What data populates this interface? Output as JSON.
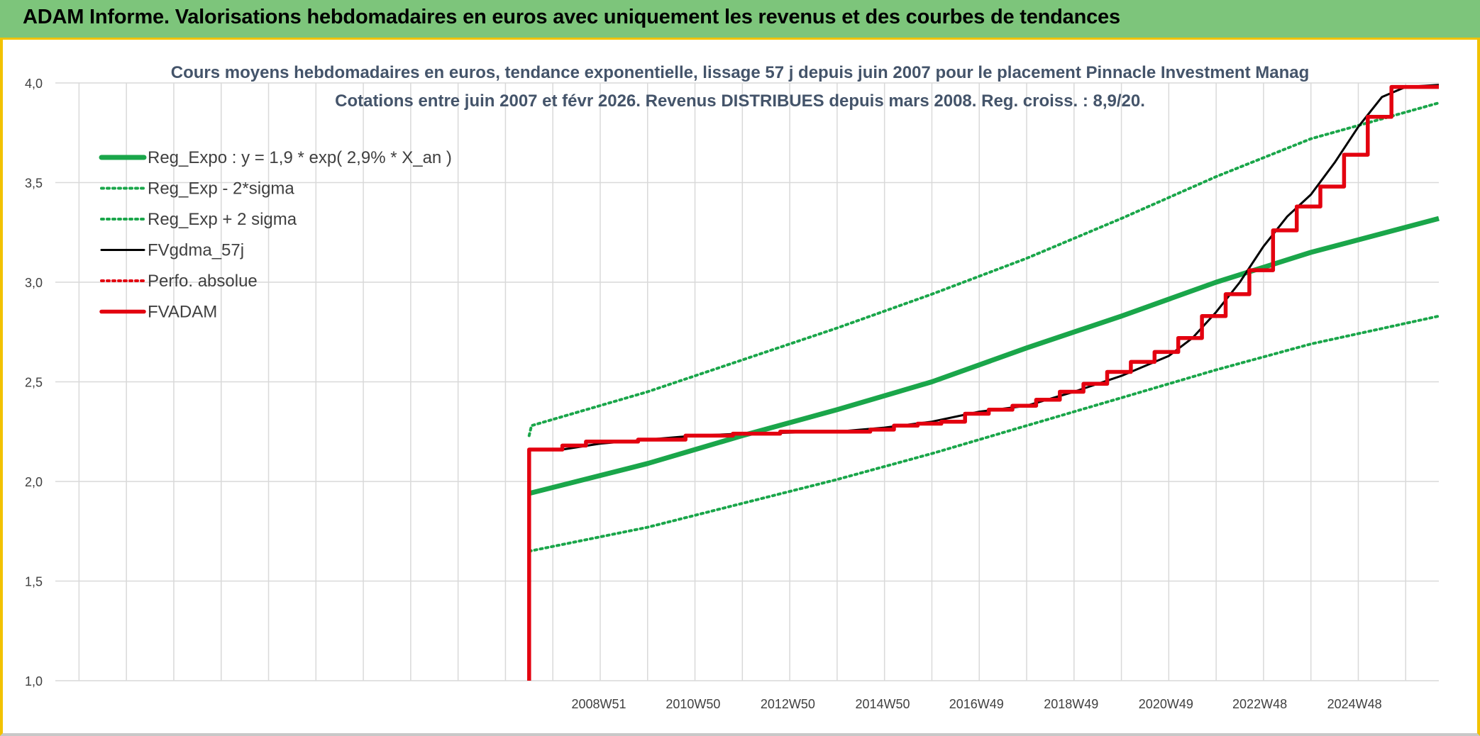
{
  "header": {
    "title": "ADAM Informe. Valorisations hebdomadaires en euros avec uniquement les revenus et des courbes de tendances"
  },
  "chart_data": {
    "type": "line",
    "title": "Cours moyens hebdomadaires en euros, tendance exponentielle, lissage 57 j depuis juin 2007 pour le placement Pinnacle Investment Manag",
    "subtitle": "Cotations entre juin 2007 et févr 2026. Revenus DISTRIBUES depuis mars 2008. Reg. croiss. : 8,9/20.",
    "xlabel": "",
    "ylabel": "",
    "x_range": [
      1997.5,
      2026.7
    ],
    "ylim": [
      1.0,
      4.0
    ],
    "y_ticks": [
      "1,0",
      "1,5",
      "2,0",
      "2,5",
      "3,0",
      "3,5",
      "4,0"
    ],
    "x_ticks": [
      {
        "label": "2008W51",
        "x": 2008.97
      },
      {
        "label": "2010W50",
        "x": 2010.96
      },
      {
        "label": "2012W50",
        "x": 2012.96
      },
      {
        "label": "2014W50",
        "x": 2014.96
      },
      {
        "label": "2016W49",
        "x": 2016.94
      },
      {
        "label": "2018W49",
        "x": 2018.94
      },
      {
        "label": "2020W49",
        "x": 2020.94
      },
      {
        "label": "2022W48",
        "x": 2022.92
      },
      {
        "label": "2024W48",
        "x": 2024.92
      }
    ],
    "grid": true,
    "legend_position": "top-left",
    "series": [
      {
        "name": "Reg_Expo : y = 1,9 * exp( 2,9% *  X_an )",
        "color": "#1aa64a",
        "style": "solid-thick",
        "points": [
          [
            2007.5,
            1.94
          ],
          [
            2010,
            2.09
          ],
          [
            2012,
            2.23
          ],
          [
            2014,
            2.36
          ],
          [
            2016,
            2.5
          ],
          [
            2018,
            2.67
          ],
          [
            2020,
            2.83
          ],
          [
            2022,
            3.0
          ],
          [
            2024,
            3.15
          ],
          [
            2026.7,
            3.32
          ]
        ]
      },
      {
        "name": "Reg_Exp - 2*sigma",
        "color": "#1aa64a",
        "style": "dotted",
        "points": [
          [
            2007.5,
            1.65
          ],
          [
            2010,
            1.77
          ],
          [
            2012,
            1.89
          ],
          [
            2014,
            2.01
          ],
          [
            2016,
            2.14
          ],
          [
            2018,
            2.28
          ],
          [
            2020,
            2.42
          ],
          [
            2022,
            2.56
          ],
          [
            2024,
            2.69
          ],
          [
            2026.7,
            2.83
          ]
        ]
      },
      {
        "name": "Reg_Exp + 2 sigma",
        "color": "#1aa64a",
        "style": "dotted",
        "points": [
          [
            2007.5,
            2.23
          ],
          [
            2007.55,
            2.28
          ],
          [
            2010,
            2.45
          ],
          [
            2012,
            2.61
          ],
          [
            2014,
            2.77
          ],
          [
            2016,
            2.94
          ],
          [
            2018,
            3.12
          ],
          [
            2020,
            3.32
          ],
          [
            2022,
            3.53
          ],
          [
            2024,
            3.72
          ],
          [
            2026.7,
            3.9
          ]
        ]
      },
      {
        "name": "FVgdma_57j",
        "color": "#000000",
        "style": "solid",
        "points": [
          [
            2007.6,
            2.16
          ],
          [
            2008.2,
            2.16
          ],
          [
            2009,
            2.19
          ],
          [
            2010,
            2.21
          ],
          [
            2011,
            2.23
          ],
          [
            2012,
            2.24
          ],
          [
            2014,
            2.25
          ],
          [
            2015,
            2.27
          ],
          [
            2016,
            2.3
          ],
          [
            2017,
            2.35
          ],
          [
            2018,
            2.38
          ],
          [
            2019,
            2.45
          ],
          [
            2020,
            2.53
          ],
          [
            2021,
            2.63
          ],
          [
            2021.5,
            2.72
          ],
          [
            2022,
            2.85
          ],
          [
            2022.5,
            3.0
          ],
          [
            2023,
            3.18
          ],
          [
            2023.5,
            3.33
          ],
          [
            2024,
            3.44
          ],
          [
            2024.5,
            3.6
          ],
          [
            2025,
            3.78
          ],
          [
            2025.5,
            3.93
          ],
          [
            2026,
            3.98
          ],
          [
            2026.7,
            3.99
          ]
        ]
      },
      {
        "name": "Perfo. absolue",
        "color": "#e3000f",
        "style": "dotted",
        "points": []
      },
      {
        "name": "FVADAM",
        "color": "#e3000f",
        "style": "step-thick",
        "points": [
          [
            2007.5,
            1.0
          ],
          [
            2007.5,
            2.16
          ],
          [
            2008.2,
            2.16
          ],
          [
            2008.2,
            2.18
          ],
          [
            2008.7,
            2.18
          ],
          [
            2008.7,
            2.2
          ],
          [
            2009.8,
            2.2
          ],
          [
            2009.8,
            2.21
          ],
          [
            2010.8,
            2.21
          ],
          [
            2010.8,
            2.23
          ],
          [
            2011.8,
            2.23
          ],
          [
            2011.8,
            2.24
          ],
          [
            2012.8,
            2.24
          ],
          [
            2012.8,
            2.25
          ],
          [
            2014.7,
            2.25
          ],
          [
            2014.7,
            2.26
          ],
          [
            2015.2,
            2.26
          ],
          [
            2015.2,
            2.28
          ],
          [
            2015.7,
            2.28
          ],
          [
            2015.7,
            2.29
          ],
          [
            2016.2,
            2.29
          ],
          [
            2016.2,
            2.3
          ],
          [
            2016.7,
            2.3
          ],
          [
            2016.7,
            2.34
          ],
          [
            2017.2,
            2.34
          ],
          [
            2017.2,
            2.36
          ],
          [
            2017.7,
            2.36
          ],
          [
            2017.7,
            2.38
          ],
          [
            2018.2,
            2.38
          ],
          [
            2018.2,
            2.41
          ],
          [
            2018.7,
            2.41
          ],
          [
            2018.7,
            2.45
          ],
          [
            2019.2,
            2.45
          ],
          [
            2019.2,
            2.49
          ],
          [
            2019.7,
            2.49
          ],
          [
            2019.7,
            2.55
          ],
          [
            2020.2,
            2.55
          ],
          [
            2020.2,
            2.6
          ],
          [
            2020.7,
            2.6
          ],
          [
            2020.7,
            2.65
          ],
          [
            2021.2,
            2.65
          ],
          [
            2021.2,
            2.72
          ],
          [
            2021.7,
            2.72
          ],
          [
            2021.7,
            2.83
          ],
          [
            2022.2,
            2.83
          ],
          [
            2022.2,
            2.94
          ],
          [
            2022.7,
            2.94
          ],
          [
            2022.7,
            3.06
          ],
          [
            2023.2,
            3.06
          ],
          [
            2023.2,
            3.26
          ],
          [
            2023.7,
            3.26
          ],
          [
            2023.7,
            3.38
          ],
          [
            2024.2,
            3.38
          ],
          [
            2024.2,
            3.48
          ],
          [
            2024.7,
            3.48
          ],
          [
            2024.7,
            3.64
          ],
          [
            2025.2,
            3.64
          ],
          [
            2025.2,
            3.83
          ],
          [
            2025.7,
            3.83
          ],
          [
            2025.7,
            3.98
          ],
          [
            2026.7,
            3.98
          ]
        ]
      }
    ]
  }
}
